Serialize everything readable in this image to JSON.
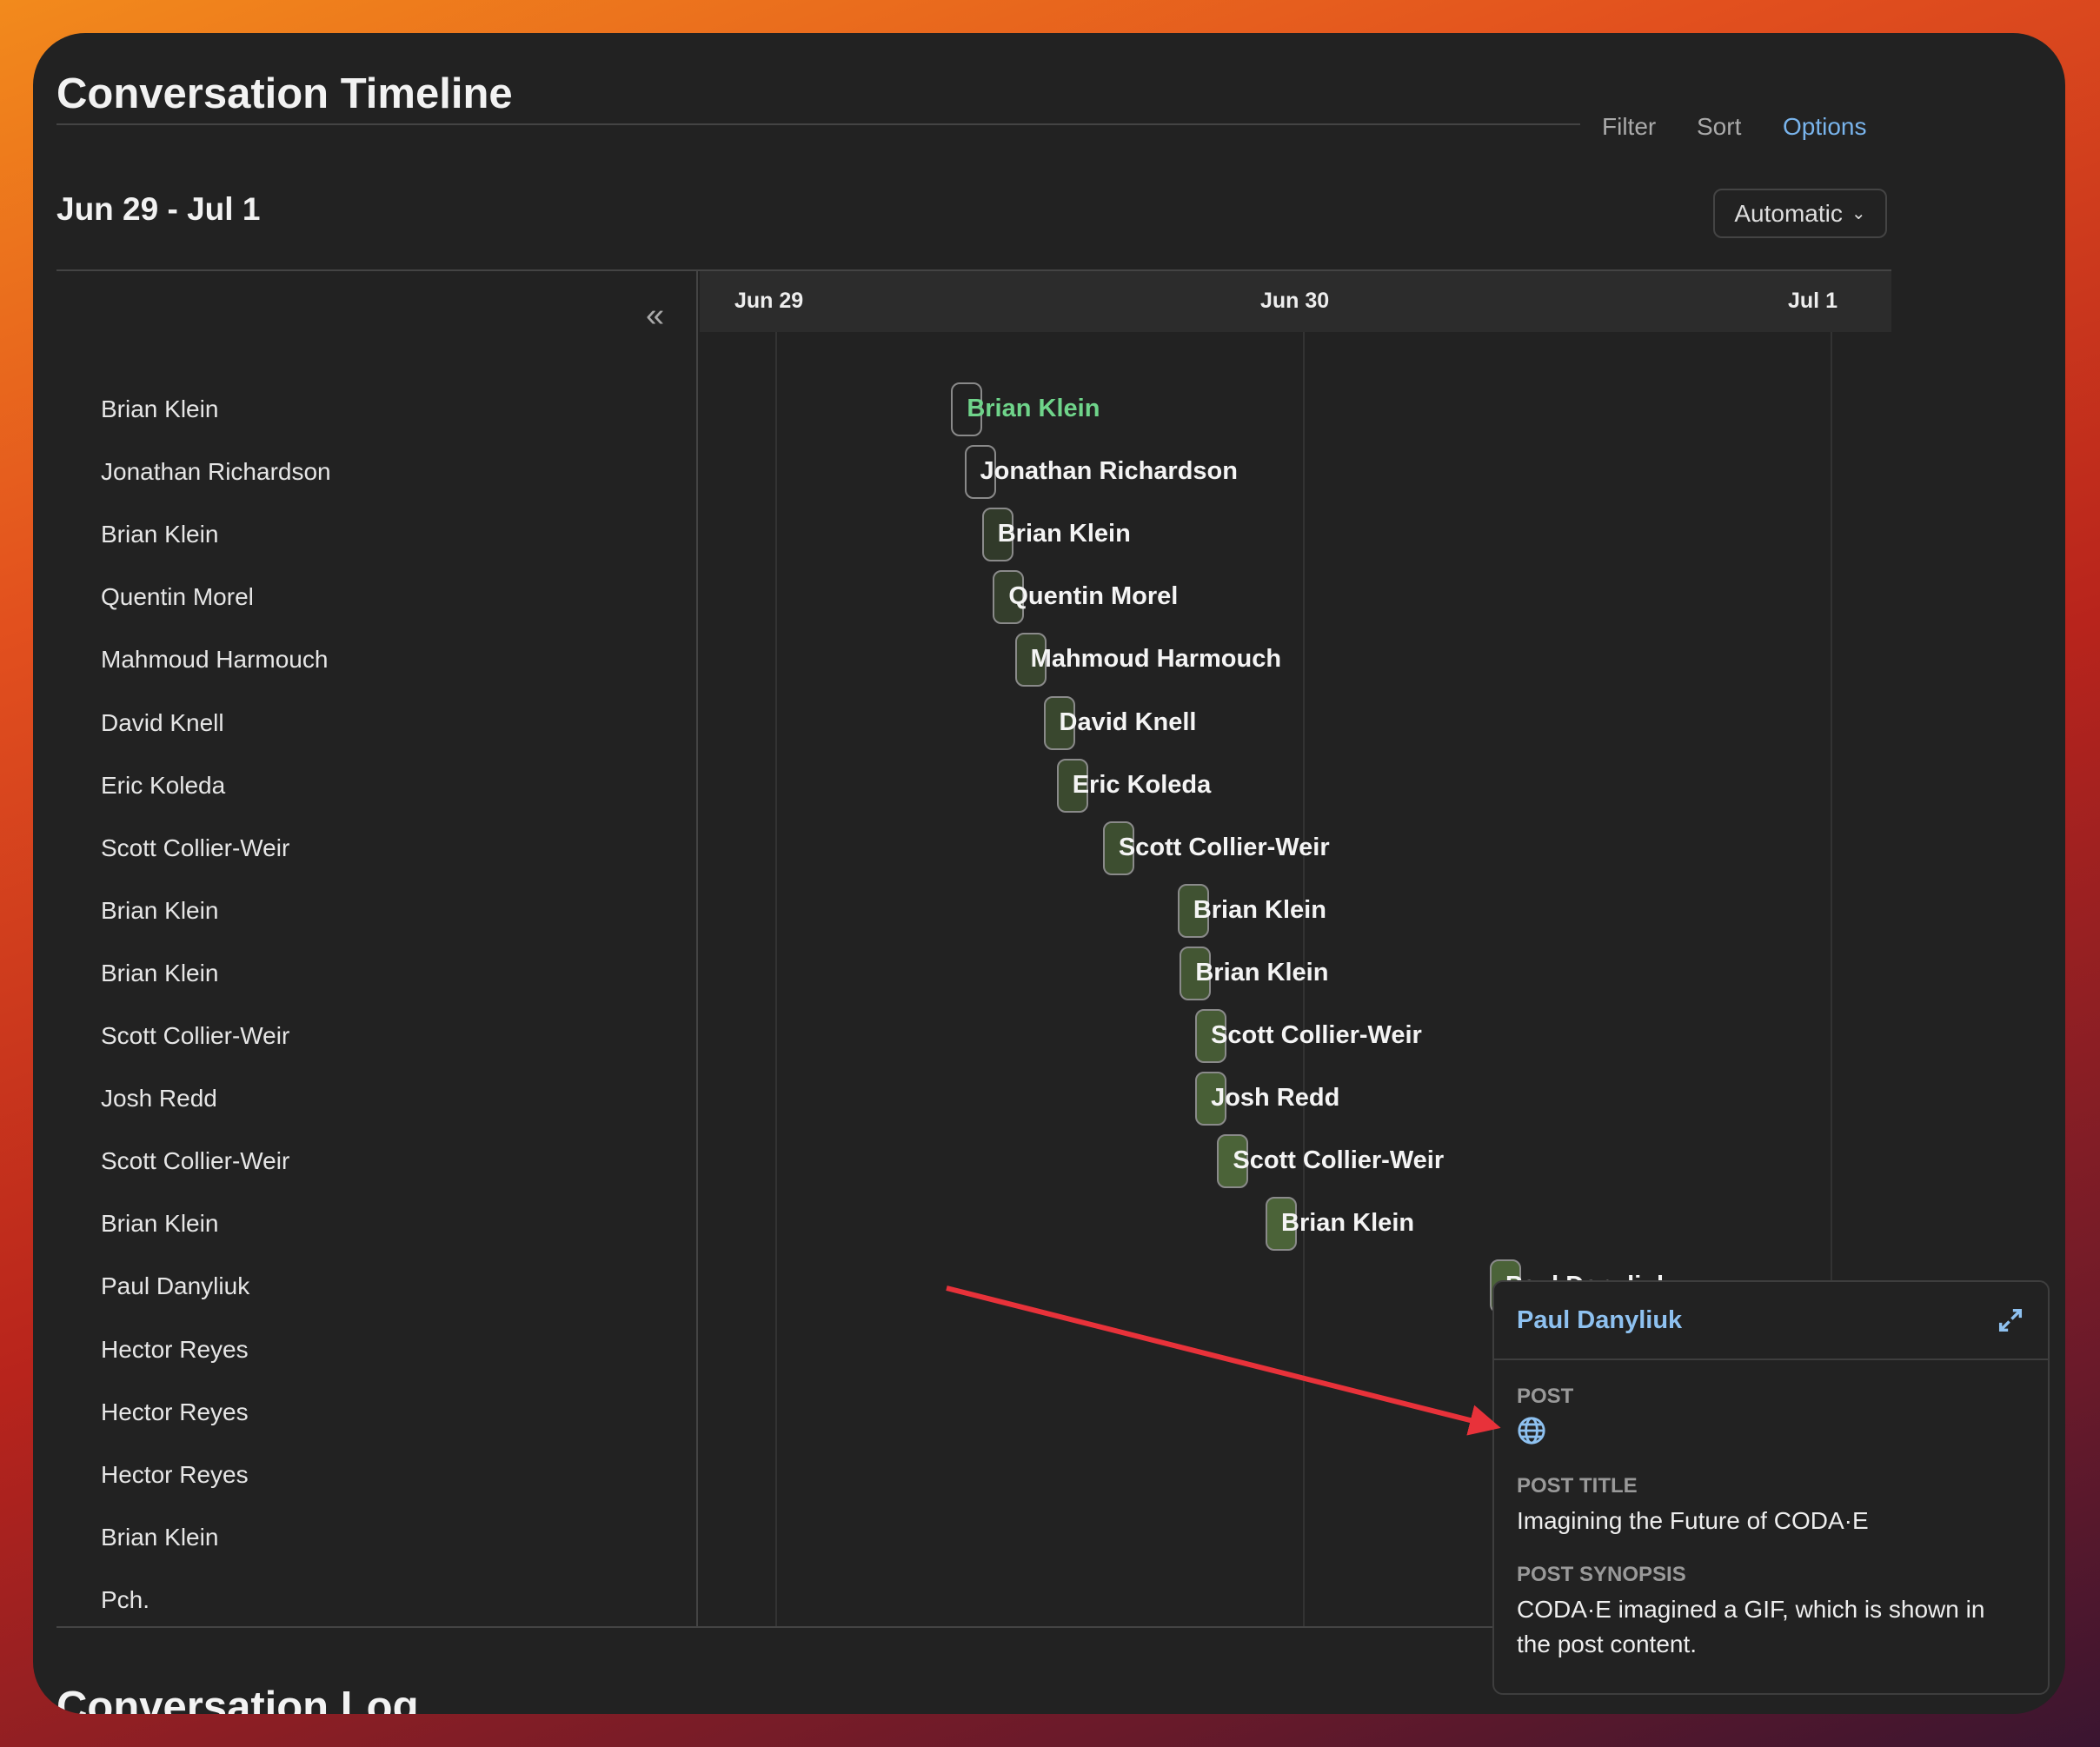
{
  "header": {
    "title": "Conversation Timeline",
    "toolbar": [
      "Filter",
      "Sort",
      "Options"
    ],
    "active_toolbar": "Options"
  },
  "range": {
    "label": "Jun 29 - Jul 1",
    "mode": "Automatic"
  },
  "timeline": {
    "ticks": [
      "Jun 29",
      "Jun 30",
      "Jul 1"
    ],
    "hours_per_day": 24,
    "rows": [
      {
        "name": "Brian Klein",
        "hour": 8.0,
        "highlighted": true
      },
      {
        "name": "Jonathan Richardson",
        "hour": 8.6
      },
      {
        "name": "Brian Klein",
        "hour": 9.4
      },
      {
        "name": "Quentin Morel",
        "hour": 9.9
      },
      {
        "name": "Mahmoud Harmouch",
        "hour": 10.9
      },
      {
        "name": "David Knell",
        "hour": 12.2
      },
      {
        "name": "Eric Koleda",
        "hour": 12.8
      },
      {
        "name": "Scott Collier-Weir",
        "hour": 14.9
      },
      {
        "name": "Brian Klein",
        "hour": 18.3
      },
      {
        "name": "Brian Klein",
        "hour": 18.4
      },
      {
        "name": "Scott Collier-Weir",
        "hour": 19.1
      },
      {
        "name": "Josh Redd",
        "hour": 19.1
      },
      {
        "name": "Scott Collier-Weir",
        "hour": 20.1
      },
      {
        "name": "Brian Klein",
        "hour": 22.3
      },
      {
        "name": "Paul Danyliuk",
        "hour": 32.5
      },
      {
        "name": "Hector Reyes"
      },
      {
        "name": "Hector Reyes"
      },
      {
        "name": "Hector Reyes"
      },
      {
        "name": "Brian Klein"
      },
      {
        "name": "Pch."
      }
    ]
  },
  "popover": {
    "name": "Paul Danyliuk",
    "post_label": "POST",
    "post_icon": "globe-icon",
    "title_label": "POST TITLE",
    "title": "Imagining the Future of CODA·E",
    "synopsis_label": "POST SYNOPSIS",
    "synopsis": "CODA·E imagined a GIF, which is shown in the post content."
  },
  "next_section": "Conversation Log",
  "colors": {
    "accent": "#79b4ec",
    "highlight": "#6fd48a",
    "bar_max": "#4b6338",
    "arrow": "#e8323a"
  }
}
